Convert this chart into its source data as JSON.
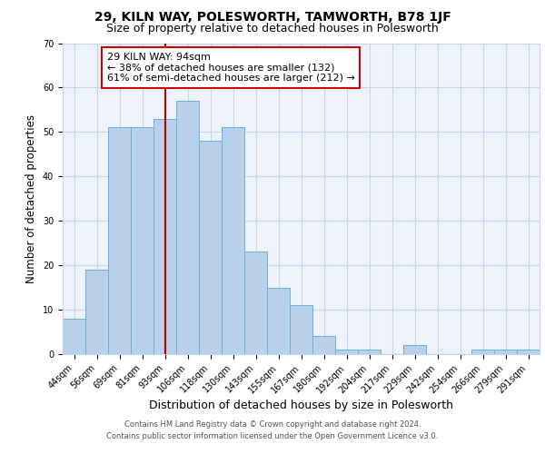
{
  "title1": "29, KILN WAY, POLESWORTH, TAMWORTH, B78 1JF",
  "title2": "Size of property relative to detached houses in Polesworth",
  "xlabel": "Distribution of detached houses by size in Polesworth",
  "ylabel": "Number of detached properties",
  "categories": [
    "44sqm",
    "56sqm",
    "69sqm",
    "81sqm",
    "93sqm",
    "106sqm",
    "118sqm",
    "130sqm",
    "143sqm",
    "155sqm",
    "167sqm",
    "180sqm",
    "192sqm",
    "204sqm",
    "217sqm",
    "229sqm",
    "242sqm",
    "254sqm",
    "266sqm",
    "279sqm",
    "291sqm"
  ],
  "values": [
    8,
    19,
    51,
    51,
    53,
    57,
    48,
    51,
    23,
    15,
    11,
    4,
    1,
    1,
    0,
    2,
    0,
    0,
    1,
    1,
    1
  ],
  "bar_color": "#b8d0ea",
  "bar_edge_color": "#6baed6",
  "bar_width": 1.0,
  "ylim": [
    0,
    70
  ],
  "yticks": [
    0,
    10,
    20,
    30,
    40,
    50,
    60,
    70
  ],
  "grid_color": "#c8d4e8",
  "bg_color": "#edf2fb",
  "property_line_x": 4.0,
  "property_line_color": "#bb0000",
  "annotation_text": "29 KILN WAY: 94sqm\n← 38% of detached houses are smaller (132)\n61% of semi-detached houses are larger (212) →",
  "annotation_box_color": "#ffffff",
  "annotation_box_edge": "#cc0000",
  "footer1": "Contains HM Land Registry data © Crown copyright and database right 2024.",
  "footer2": "Contains public sector information licensed under the Open Government Licence v3.0.",
  "title1_fontsize": 10,
  "title2_fontsize": 9,
  "tick_fontsize": 7,
  "ylabel_fontsize": 8.5,
  "xlabel_fontsize": 9,
  "footer_fontsize": 6,
  "annotation_fontsize": 8
}
